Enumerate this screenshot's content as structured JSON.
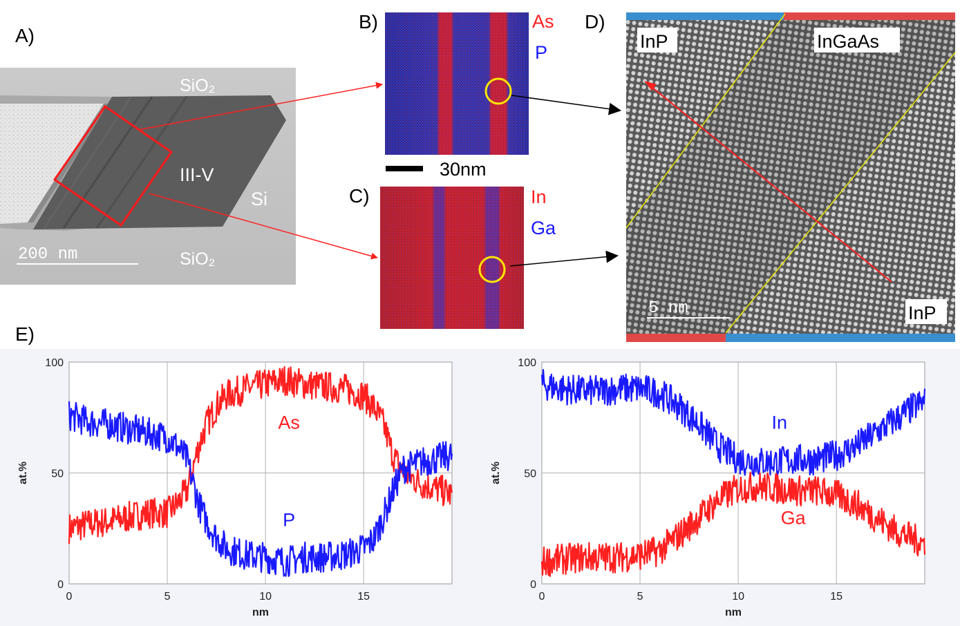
{
  "panels": {
    "a": {
      "label": "A)",
      "regions": {
        "sio2_top": "SiO₂",
        "iii_v": "III-V",
        "si": "Si",
        "sio2_bottom": "SiO₂"
      },
      "scalebar": "200 nm"
    },
    "b": {
      "label": "B)",
      "elements": [
        "As",
        "P"
      ]
    },
    "scale_30": "30nm",
    "c": {
      "label": "C)",
      "elements": [
        "In",
        "Ga"
      ]
    },
    "d": {
      "label": "D)",
      "regions": {
        "left_top": "InP",
        "middle": "InGaAs",
        "right_bottom": "InP"
      },
      "scalebar": "5 nm"
    },
    "e": {
      "label": "E)"
    }
  },
  "colors": {
    "red": "#ff2020",
    "blue": "#1a1aff",
    "eds_blue": "#2c2ca8",
    "eds_red": "#e02020",
    "strip_red": "#e04848",
    "strip_blue": "#3a8fd0"
  },
  "chart_data": [
    {
      "type": "line",
      "xlabel": "nm",
      "ylabel": "at.%",
      "xlim": [
        0,
        19.5
      ],
      "ylim": [
        0,
        100
      ],
      "xticks": [
        0,
        5,
        10,
        15
      ],
      "yticks": [
        0,
        50,
        100
      ],
      "grid": true,
      "x": [
        0,
        1,
        2,
        3,
        4,
        5,
        5.5,
        6,
        6.3,
        6.6,
        7,
        7.5,
        8,
        9,
        10,
        11,
        12,
        13,
        14,
        15,
        15.5,
        16,
        16.5,
        17,
        18,
        19,
        19.5
      ],
      "series": [
        {
          "name": "As",
          "color": "red",
          "values": [
            25,
            27,
            28,
            30,
            32,
            32,
            36,
            42,
            52,
            62,
            72,
            80,
            85,
            88,
            90,
            92,
            90,
            89,
            88,
            85,
            80,
            72,
            58,
            50,
            45,
            42,
            40
          ]
        },
        {
          "name": "P",
          "color": "blue",
          "values": [
            76,
            73,
            72,
            70,
            68,
            66,
            62,
            56,
            46,
            36,
            28,
            21,
            16,
            13,
            12,
            10,
            12,
            12,
            13,
            16,
            20,
            30,
            42,
            52,
            55,
            57,
            58
          ]
        }
      ],
      "annotations": [
        {
          "text": "As",
          "x": 11.2,
          "y": 70,
          "color": "red"
        },
        {
          "text": "P",
          "x": 11.2,
          "y": 26,
          "color": "blue"
        }
      ]
    },
    {
      "type": "line",
      "xlabel": "nm",
      "ylabel": "at.%",
      "xlim": [
        0,
        19.5
      ],
      "ylim": [
        0,
        100
      ],
      "xticks": [
        0,
        5,
        10,
        15
      ],
      "yticks": [
        0,
        50,
        100
      ],
      "grid": true,
      "x": [
        0,
        1,
        2,
        3,
        4,
        5,
        6,
        7,
        8,
        9,
        10,
        11,
        12,
        13,
        14,
        15,
        16,
        17,
        18,
        19,
        19.5
      ],
      "series": [
        {
          "name": "In",
          "color": "blue",
          "values": [
            90,
            88,
            87,
            87,
            88,
            88,
            86,
            80,
            72,
            62,
            56,
            55,
            55,
            56,
            56,
            58,
            62,
            68,
            74,
            80,
            82
          ]
        },
        {
          "name": "Ga",
          "color": "red",
          "values": [
            10,
            11,
            12,
            12,
            12,
            13,
            15,
            22,
            30,
            38,
            43,
            44,
            43,
            42,
            42,
            40,
            36,
            30,
            24,
            20,
            18
          ]
        }
      ],
      "annotations": [
        {
          "text": "In",
          "x": 12.1,
          "y": 70,
          "color": "blue"
        },
        {
          "text": "Ga",
          "x": 12.8,
          "y": 27,
          "color": "red"
        }
      ]
    }
  ]
}
